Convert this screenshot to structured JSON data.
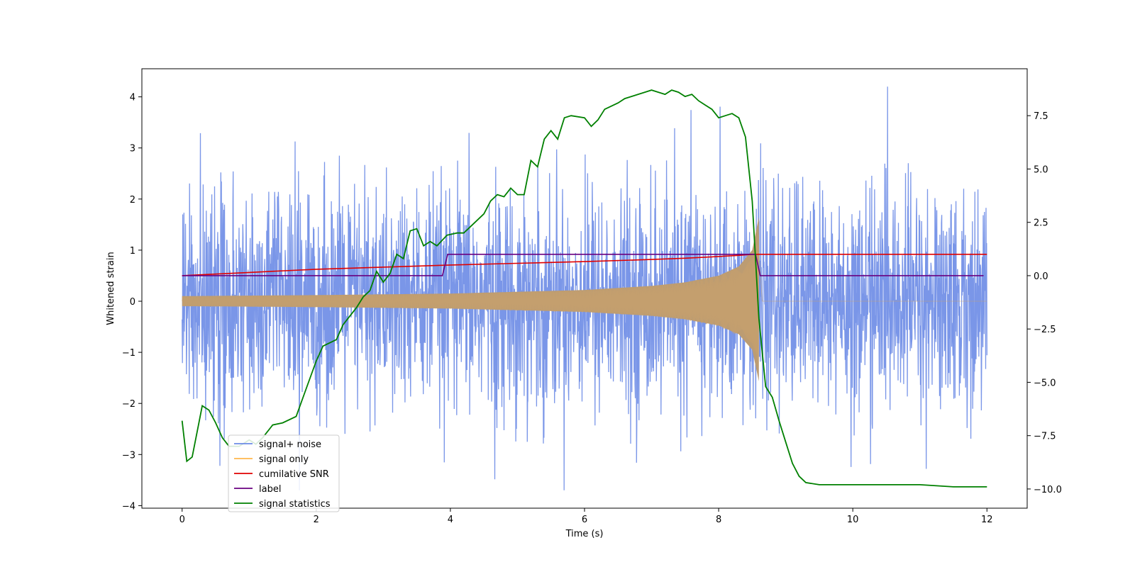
{
  "chart_data": {
    "type": "line",
    "title": "",
    "xlabel": "Time (s)",
    "ylabel": "Whitened strain",
    "xlim": [
      -0.6,
      12.6
    ],
    "ylim": [
      -4.05,
      4.55
    ],
    "y2lim": [
      -10.9,
      9.7
    ],
    "xticks": [
      0,
      2,
      4,
      6,
      8,
      10,
      12
    ],
    "yticks": [
      -4,
      -3,
      -2,
      -1,
      0,
      1,
      2,
      3,
      4
    ],
    "y2ticks": [
      -10.0,
      -7.5,
      -5.0,
      -2.5,
      0.0,
      2.5,
      5.0,
      7.5
    ],
    "legend_position": "lower-left",
    "legend": [
      {
        "label": "signal+ noise",
        "color": "#6b8be6"
      },
      {
        "label": "signal only",
        "color": "#ffb74d"
      },
      {
        "label": "cumilative SNR",
        "color": "#e00000"
      },
      {
        "label": "label",
        "color": "#6a0080"
      },
      {
        "label": "signal statistics",
        "color": "#008000"
      }
    ],
    "series": [
      {
        "name": "signal+ noise",
        "axis": "left",
        "note": "noisy whitened strain, sampled 0-12 s, roughly gaussian with sigma ~1.1 and peaks near +4.2 / -3.7",
        "t_range": [
          0,
          12
        ],
        "approx_range": [
          -3.7,
          4.2
        ]
      },
      {
        "name": "signal only",
        "axis": "left",
        "note": "chirp waveform whose envelope grows from ~0.1 at t=0 to ~1.65 at merger t~8.6 s, zero afterwards",
        "envelope": {
          "t": [
            0,
            2,
            4,
            6,
            7,
            7.5,
            8,
            8.3,
            8.5,
            8.6
          ],
          "amp": [
            0.1,
            0.12,
            0.15,
            0.22,
            0.3,
            0.37,
            0.5,
            0.68,
            1.0,
            1.65
          ]
        },
        "merger_time": 8.6
      },
      {
        "name": "cumilative SNR",
        "axis": "right",
        "x": [
          0,
          1,
          2,
          3,
          4,
          5,
          6,
          7,
          7.5,
          8,
          8.3,
          8.5,
          8.6,
          12
        ],
        "y": [
          0,
          0.15,
          0.3,
          0.4,
          0.5,
          0.58,
          0.66,
          0.76,
          0.82,
          0.9,
          0.95,
          1.0,
          1.0,
          1.0
        ]
      },
      {
        "name": "label",
        "axis": "right",
        "x": [
          0,
          3.9,
          3.9,
          8.55,
          8.55,
          11.95
        ],
        "y": [
          0,
          0,
          1,
          1,
          0,
          0
        ],
        "points": [
          [
            0,
            0
          ],
          [
            3.88,
            0
          ],
          [
            3.96,
            1
          ],
          [
            8.55,
            1
          ],
          [
            8.62,
            0
          ],
          [
            11.95,
            0
          ]
        ]
      },
      {
        "name": "signal statistics",
        "axis": "right",
        "points": [
          [
            0.0,
            -6.8
          ],
          [
            0.07,
            -8.7
          ],
          [
            0.15,
            -8.5
          ],
          [
            0.25,
            -6.9
          ],
          [
            0.3,
            -6.1
          ],
          [
            0.4,
            -6.3
          ],
          [
            0.5,
            -6.9
          ],
          [
            0.6,
            -7.6
          ],
          [
            0.7,
            -8.0
          ],
          [
            0.85,
            -8.0
          ],
          [
            1.0,
            -7.7
          ],
          [
            1.1,
            -7.9
          ],
          [
            1.2,
            -7.6
          ],
          [
            1.35,
            -7.0
          ],
          [
            1.5,
            -6.9
          ],
          [
            1.7,
            -6.6
          ],
          [
            1.85,
            -5.3
          ],
          [
            2.0,
            -4.0
          ],
          [
            2.1,
            -3.3
          ],
          [
            2.3,
            -3.0
          ],
          [
            2.4,
            -2.3
          ],
          [
            2.5,
            -1.9
          ],
          [
            2.6,
            -1.5
          ],
          [
            2.7,
            -1.0
          ],
          [
            2.8,
            -0.7
          ],
          [
            2.9,
            0.2
          ],
          [
            3.0,
            -0.3
          ],
          [
            3.1,
            0.1
          ],
          [
            3.2,
            1.0
          ],
          [
            3.3,
            0.8
          ],
          [
            3.4,
            2.1
          ],
          [
            3.5,
            2.2
          ],
          [
            3.6,
            1.4
          ],
          [
            3.7,
            1.6
          ],
          [
            3.8,
            1.4
          ],
          [
            3.95,
            1.9
          ],
          [
            4.1,
            2.0
          ],
          [
            4.2,
            2.0
          ],
          [
            4.3,
            2.3
          ],
          [
            4.5,
            2.9
          ],
          [
            4.6,
            3.5
          ],
          [
            4.7,
            3.8
          ],
          [
            4.8,
            3.7
          ],
          [
            4.9,
            4.1
          ],
          [
            5.0,
            3.8
          ],
          [
            5.1,
            3.8
          ],
          [
            5.2,
            5.4
          ],
          [
            5.3,
            5.1
          ],
          [
            5.4,
            6.4
          ],
          [
            5.5,
            6.8
          ],
          [
            5.6,
            6.4
          ],
          [
            5.7,
            7.4
          ],
          [
            5.8,
            7.5
          ],
          [
            6.0,
            7.4
          ],
          [
            6.1,
            7.0
          ],
          [
            6.2,
            7.3
          ],
          [
            6.3,
            7.8
          ],
          [
            6.5,
            8.1
          ],
          [
            6.6,
            8.3
          ],
          [
            6.7,
            8.4
          ],
          [
            6.8,
            8.5
          ],
          [
            6.9,
            8.6
          ],
          [
            7.0,
            8.7
          ],
          [
            7.1,
            8.6
          ],
          [
            7.2,
            8.5
          ],
          [
            7.3,
            8.7
          ],
          [
            7.4,
            8.6
          ],
          [
            7.5,
            8.4
          ],
          [
            7.6,
            8.5
          ],
          [
            7.7,
            8.2
          ],
          [
            7.8,
            8.0
          ],
          [
            7.9,
            7.8
          ],
          [
            8.0,
            7.4
          ],
          [
            8.1,
            7.5
          ],
          [
            8.2,
            7.6
          ],
          [
            8.3,
            7.4
          ],
          [
            8.4,
            6.5
          ],
          [
            8.5,
            3.5
          ],
          [
            8.6,
            -2.0
          ],
          [
            8.7,
            -5.2
          ],
          [
            8.8,
            -5.7
          ],
          [
            8.9,
            -6.8
          ],
          [
            9.0,
            -7.8
          ],
          [
            9.1,
            -8.8
          ],
          [
            9.2,
            -9.4
          ],
          [
            9.3,
            -9.7
          ],
          [
            9.5,
            -9.8
          ],
          [
            10.0,
            -9.8
          ],
          [
            10.5,
            -9.8
          ],
          [
            11.0,
            -9.8
          ],
          [
            11.5,
            -9.9
          ],
          [
            12.0,
            -9.9
          ]
        ]
      }
    ]
  }
}
